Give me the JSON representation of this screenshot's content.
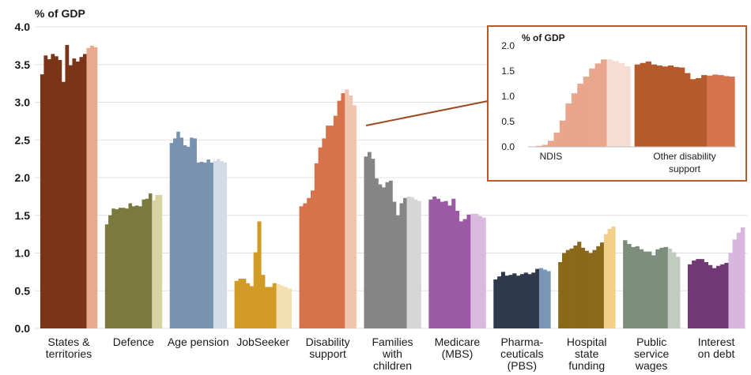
{
  "colors": {
    "states_territories": [
      "#7a3519",
      "#e9a98f"
    ],
    "defence": [
      "#7b7a3e",
      "#d7d4a3"
    ],
    "age_pension": [
      "#7892b0",
      "#d3dbe6"
    ],
    "jobseeker": [
      "#d29a27",
      "#f2dfb2"
    ],
    "disability_support": [
      "#d7734a",
      "#f0c5b0"
    ],
    "families_with_children": [
      "#858585",
      "#d6d6d6"
    ],
    "medicare": [
      "#9c5aa6",
      "#d9b9de"
    ],
    "pbs": [
      "#2e3a4c",
      "#7b95b7"
    ],
    "hospital": [
      "#8a6a1a",
      "#f1d08a"
    ],
    "public_service": [
      "#7e8e7d",
      "#c2cbc1"
    ],
    "interest": [
      "#6f3a74",
      "#d7b7dd"
    ],
    "ndis": [
      "#e8a78d",
      "#f6dcd2"
    ],
    "other_disability": [
      "#b45a2b",
      "#d6744d"
    ],
    "inset_border": "#b45a2b",
    "connector": "#9b4a22",
    "gridline": "#e0e0e0"
  },
  "chart_data": [
    {
      "type": "bar",
      "title": "",
      "unit_label": "% of GDP",
      "xlabel": "",
      "ylabel": "% of GDP",
      "ylim": [
        0,
        4.0
      ],
      "yticks": [
        "0.0",
        "0.5",
        "1.0",
        "1.5",
        "2.0",
        "2.5",
        "3.0",
        "3.5",
        "4.0"
      ],
      "grid": true,
      "legend": "none",
      "categories": [
        {
          "key": "states_territories",
          "label": [
            "States &",
            "territories"
          ],
          "actual": [
            3.37,
            3.62,
            3.57,
            3.64,
            3.61,
            3.56,
            3.27,
            3.76,
            3.49,
            3.58,
            3.54,
            3.6,
            3.64
          ],
          "projected": [
            3.72,
            3.75,
            3.73
          ]
        },
        {
          "key": "defence",
          "label": [
            "Defence"
          ],
          "actual": [
            1.38,
            1.5,
            1.59,
            1.58,
            1.6,
            1.6,
            1.59,
            1.66,
            1.62,
            1.63,
            1.62,
            1.71,
            1.72,
            1.79
          ],
          "projected": [
            1.7,
            1.77,
            1.77
          ]
        },
        {
          "key": "age_pension",
          "label": [
            "Age pension"
          ],
          "actual": [
            2.46,
            2.52,
            2.61,
            2.53,
            2.43,
            2.41,
            2.53,
            2.52,
            2.2,
            2.21,
            2.2,
            2.24,
            2.2
          ],
          "projected": [
            2.22,
            2.25,
            2.22,
            2.2
          ]
        },
        {
          "key": "jobseeker",
          "label": [
            "JobSeeker"
          ],
          "actual": [
            0.63,
            0.66,
            0.66,
            0.6,
            0.56,
            1.01,
            1.42,
            0.71,
            0.55,
            0.55,
            0.6
          ],
          "projected": [
            0.59,
            0.57,
            0.55,
            0.53
          ]
        },
        {
          "key": "disability_support",
          "label": [
            "Disability",
            "support"
          ],
          "actual": [
            1.62,
            1.66,
            1.73,
            1.83,
            2.19,
            2.4,
            2.52,
            2.69,
            2.69,
            2.82,
            3.02,
            3.12
          ],
          "projected": [
            3.17,
            3.09,
            2.96
          ]
        },
        {
          "key": "families_with_children",
          "label": [
            "Families",
            "with",
            "children"
          ],
          "actual": [
            2.28,
            2.34,
            2.25,
            1.99,
            1.91,
            1.87,
            1.94,
            1.96,
            1.68,
            1.5,
            1.66,
            1.73
          ],
          "projected": [
            1.75,
            1.74,
            1.71,
            1.69
          ]
        },
        {
          "key": "medicare",
          "label": [
            "Medicare",
            "(MBS)"
          ],
          "actual": [
            1.71,
            1.75,
            1.72,
            1.68,
            1.69,
            1.63,
            1.72,
            1.56,
            1.42,
            1.45,
            1.51
          ],
          "projected": [
            1.52,
            1.52,
            1.49,
            1.47
          ]
        },
        {
          "key": "pbs",
          "label": [
            "Pharma-",
            "ceuticals",
            "(PBS)"
          ],
          "actual": [
            0.65,
            0.69,
            0.75,
            0.7,
            0.71,
            0.73,
            0.7,
            0.72,
            0.74,
            0.72,
            0.74,
            0.79
          ],
          "projected": [
            0.8,
            0.78,
            0.76
          ]
        },
        {
          "key": "hospital",
          "label": [
            "Hospital",
            "state",
            "funding"
          ],
          "actual": [
            0.88,
            1.0,
            1.04,
            1.06,
            1.1,
            1.15,
            1.07,
            1.03,
            1.0,
            1.04,
            1.09,
            1.14
          ],
          "projected": [
            1.25,
            1.32,
            1.35
          ]
        },
        {
          "key": "public_service",
          "label": [
            "Public",
            "service",
            "wages"
          ],
          "actual": [
            1.17,
            1.12,
            1.08,
            1.09,
            1.05,
            1.02,
            1.02,
            0.97,
            1.05,
            1.07,
            1.08
          ],
          "projected": [
            1.06,
            1.01,
            0.95
          ]
        },
        {
          "key": "interest",
          "label": [
            "Interest",
            "on debt"
          ],
          "actual": [
            0.85,
            0.9,
            0.92,
            0.92,
            0.88,
            0.84,
            0.8,
            0.83,
            0.85,
            0.87
          ],
          "projected": [
            1.0,
            1.18,
            1.27,
            1.34
          ]
        }
      ]
    },
    {
      "type": "bar",
      "title": "",
      "unit_label": "% of GDP",
      "ylabel": "% of GDP",
      "ylim": [
        0,
        2.0
      ],
      "yticks": [
        "0.0",
        "0.5",
        "1.0",
        "1.5",
        "2.0"
      ],
      "grid": false,
      "legend": "none",
      "callout_for": "Disability support",
      "categories": [
        {
          "key": "ndis",
          "label": [
            "NDIS"
          ],
          "actual": [
            0.0,
            0.02,
            0.04,
            0.12,
            0.28,
            0.52,
            0.86,
            1.06,
            1.25,
            1.39,
            1.55,
            1.65,
            1.73
          ],
          "projected": [
            1.73,
            1.7,
            1.66,
            1.59
          ]
        },
        {
          "key": "other_disability",
          "label": [
            "Other disability",
            "support"
          ],
          "actual": [
            1.63,
            1.66,
            1.69,
            1.63,
            1.61,
            1.59,
            1.61,
            1.58,
            1.57,
            1.46,
            1.34,
            1.36,
            1.42
          ],
          "projected": [
            1.41,
            1.43,
            1.42,
            1.4,
            1.39
          ]
        }
      ]
    }
  ]
}
